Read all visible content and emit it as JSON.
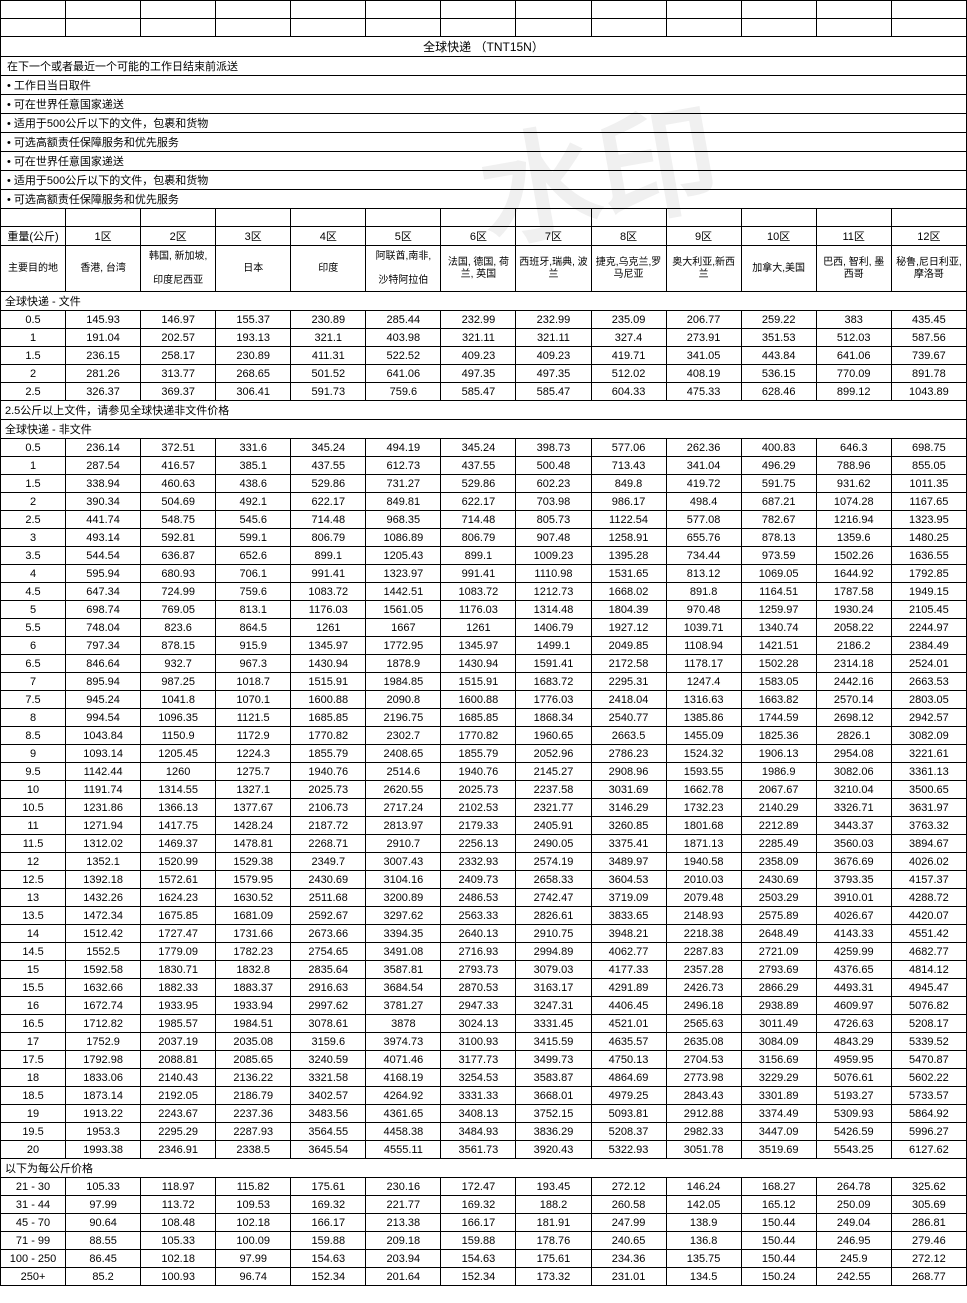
{
  "title": "全球快递 （TNT15N）",
  "delivery_note": "在下一个或者最近一个可能的工作日结束前派送",
  "bullets": [
    "工作日当日取件",
    "可在世界任意国家递送",
    "适用于500公斤以下的文件，包裹和货物",
    "可选高额责任保障服务和优先服务",
    "可在世界任意国家递送",
    "适用于500公斤以下的文件，包裹和货物",
    "可选高额责任保障服务和优先服务"
  ],
  "header_row1": [
    "重量(公斤)",
    "1区",
    "2区",
    "3区",
    "4区",
    "5区",
    "6区",
    "7区",
    "8区",
    "9区",
    "10区",
    "11区",
    "12区"
  ],
  "header_row2_label": "主要目的地",
  "destinations": [
    "香港, 台湾",
    "韩国, 新加坡,\n\n印度尼西亚",
    "日本",
    "印度",
    "阿联酋,南非,\n\n沙特阿拉伯",
    "法国, 德国, 荷兰, 英国",
    "西班牙,瑞典, 波兰",
    "捷克,乌克兰,罗马尼亚",
    "奥大利亚,新西兰",
    "加拿大,美国",
    "巴西, 智利, 墨西哥",
    "秘鲁,尼日利亚,摩洛哥"
  ],
  "section_doc": "全球快递 - 文件",
  "doc_rows": [
    [
      "0.5",
      "145.93",
      "146.97",
      "155.37",
      "230.89",
      "285.44",
      "232.99",
      "232.99",
      "235.09",
      "206.77",
      "259.22",
      "383",
      "435.45"
    ],
    [
      "1",
      "191.04",
      "202.57",
      "193.13",
      "321.1",
      "403.98",
      "321.11",
      "321.11",
      "327.4",
      "273.91",
      "351.53",
      "512.03",
      "587.56"
    ],
    [
      "1.5",
      "236.15",
      "258.17",
      "230.89",
      "411.31",
      "522.52",
      "409.23",
      "409.23",
      "419.71",
      "341.05",
      "443.84",
      "641.06",
      "739.67"
    ],
    [
      "2",
      "281.26",
      "313.77",
      "268.65",
      "501.52",
      "641.06",
      "497.35",
      "497.35",
      "512.02",
      "408.19",
      "536.15",
      "770.09",
      "891.78"
    ],
    [
      "2.5",
      "326.37",
      "369.37",
      "306.41",
      "591.73",
      "759.6",
      "585.47",
      "585.47",
      "604.33",
      "475.33",
      "628.46",
      "899.12",
      "1043.89"
    ]
  ],
  "doc_note": "2.5公斤以上文件，请参见全球快递非文件价格",
  "section_nondoc": "全球快递 - 非文件",
  "nondoc_rows": [
    [
      "0.5",
      "236.14",
      "372.51",
      "331.6",
      "345.24",
      "494.19",
      "345.24",
      "398.73",
      "577.06",
      "262.36",
      "400.83",
      "646.3",
      "698.75"
    ],
    [
      "1",
      "287.54",
      "416.57",
      "385.1",
      "437.55",
      "612.73",
      "437.55",
      "500.48",
      "713.43",
      "341.04",
      "496.29",
      "788.96",
      "855.05"
    ],
    [
      "1.5",
      "338.94",
      "460.63",
      "438.6",
      "529.86",
      "731.27",
      "529.86",
      "602.23",
      "849.8",
      "419.72",
      "591.75",
      "931.62",
      "1011.35"
    ],
    [
      "2",
      "390.34",
      "504.69",
      "492.1",
      "622.17",
      "849.81",
      "622.17",
      "703.98",
      "986.17",
      "498.4",
      "687.21",
      "1074.28",
      "1167.65"
    ],
    [
      "2.5",
      "441.74",
      "548.75",
      "545.6",
      "714.48",
      "968.35",
      "714.48",
      "805.73",
      "1122.54",
      "577.08",
      "782.67",
      "1216.94",
      "1323.95"
    ],
    [
      "3",
      "493.14",
      "592.81",
      "599.1",
      "806.79",
      "1086.89",
      "806.79",
      "907.48",
      "1258.91",
      "655.76",
      "878.13",
      "1359.6",
      "1480.25"
    ],
    [
      "3.5",
      "544.54",
      "636.87",
      "652.6",
      "899.1",
      "1205.43",
      "899.1",
      "1009.23",
      "1395.28",
      "734.44",
      "973.59",
      "1502.26",
      "1636.55"
    ],
    [
      "4",
      "595.94",
      "680.93",
      "706.1",
      "991.41",
      "1323.97",
      "991.41",
      "1110.98",
      "1531.65",
      "813.12",
      "1069.05",
      "1644.92",
      "1792.85"
    ],
    [
      "4.5",
      "647.34",
      "724.99",
      "759.6",
      "1083.72",
      "1442.51",
      "1083.72",
      "1212.73",
      "1668.02",
      "891.8",
      "1164.51",
      "1787.58",
      "1949.15"
    ],
    [
      "5",
      "698.74",
      "769.05",
      "813.1",
      "1176.03",
      "1561.05",
      "1176.03",
      "1314.48",
      "1804.39",
      "970.48",
      "1259.97",
      "1930.24",
      "2105.45"
    ],
    [
      "5.5",
      "748.04",
      "823.6",
      "864.5",
      "1261",
      "1667",
      "1261",
      "1406.79",
      "1927.12",
      "1039.71",
      "1340.74",
      "2058.22",
      "2244.97"
    ],
    [
      "6",
      "797.34",
      "878.15",
      "915.9",
      "1345.97",
      "1772.95",
      "1345.97",
      "1499.1",
      "2049.85",
      "1108.94",
      "1421.51",
      "2186.2",
      "2384.49"
    ],
    [
      "6.5",
      "846.64",
      "932.7",
      "967.3",
      "1430.94",
      "1878.9",
      "1430.94",
      "1591.41",
      "2172.58",
      "1178.17",
      "1502.28",
      "2314.18",
      "2524.01"
    ],
    [
      "7",
      "895.94",
      "987.25",
      "1018.7",
      "1515.91",
      "1984.85",
      "1515.91",
      "1683.72",
      "2295.31",
      "1247.4",
      "1583.05",
      "2442.16",
      "2663.53"
    ],
    [
      "7.5",
      "945.24",
      "1041.8",
      "1070.1",
      "1600.88",
      "2090.8",
      "1600.88",
      "1776.03",
      "2418.04",
      "1316.63",
      "1663.82",
      "2570.14",
      "2803.05"
    ],
    [
      "8",
      "994.54",
      "1096.35",
      "1121.5",
      "1685.85",
      "2196.75",
      "1685.85",
      "1868.34",
      "2540.77",
      "1385.86",
      "1744.59",
      "2698.12",
      "2942.57"
    ],
    [
      "8.5",
      "1043.84",
      "1150.9",
      "1172.9",
      "1770.82",
      "2302.7",
      "1770.82",
      "1960.65",
      "2663.5",
      "1455.09",
      "1825.36",
      "2826.1",
      "3082.09"
    ],
    [
      "9",
      "1093.14",
      "1205.45",
      "1224.3",
      "1855.79",
      "2408.65",
      "1855.79",
      "2052.96",
      "2786.23",
      "1524.32",
      "1906.13",
      "2954.08",
      "3221.61"
    ],
    [
      "9.5",
      "1142.44",
      "1260",
      "1275.7",
      "1940.76",
      "2514.6",
      "1940.76",
      "2145.27",
      "2908.96",
      "1593.55",
      "1986.9",
      "3082.06",
      "3361.13"
    ],
    [
      "10",
      "1191.74",
      "1314.55",
      "1327.1",
      "2025.73",
      "2620.55",
      "2025.73",
      "2237.58",
      "3031.69",
      "1662.78",
      "2067.67",
      "3210.04",
      "3500.65"
    ],
    [
      "10.5",
      "1231.86",
      "1366.13",
      "1377.67",
      "2106.73",
      "2717.24",
      "2102.53",
      "2321.77",
      "3146.29",
      "1732.23",
      "2140.29",
      "3326.71",
      "3631.97"
    ],
    [
      "11",
      "1271.94",
      "1417.75",
      "1428.24",
      "2187.72",
      "2813.97",
      "2179.33",
      "2405.91",
      "3260.85",
      "1801.68",
      "2212.89",
      "3443.37",
      "3763.32"
    ],
    [
      "11.5",
      "1312.02",
      "1469.37",
      "1478.81",
      "2268.71",
      "2910.7",
      "2256.13",
      "2490.05",
      "3375.41",
      "1871.13",
      "2285.49",
      "3560.03",
      "3894.67"
    ],
    [
      "12",
      "1352.1",
      "1520.99",
      "1529.38",
      "2349.7",
      "3007.43",
      "2332.93",
      "2574.19",
      "3489.97",
      "1940.58",
      "2358.09",
      "3676.69",
      "4026.02"
    ],
    [
      "12.5",
      "1392.18",
      "1572.61",
      "1579.95",
      "2430.69",
      "3104.16",
      "2409.73",
      "2658.33",
      "3604.53",
      "2010.03",
      "2430.69",
      "3793.35",
      "4157.37"
    ],
    [
      "13",
      "1432.26",
      "1624.23",
      "1630.52",
      "2511.68",
      "3200.89",
      "2486.53",
      "2742.47",
      "3719.09",
      "2079.48",
      "2503.29",
      "3910.01",
      "4288.72"
    ],
    [
      "13.5",
      "1472.34",
      "1675.85",
      "1681.09",
      "2592.67",
      "3297.62",
      "2563.33",
      "2826.61",
      "3833.65",
      "2148.93",
      "2575.89",
      "4026.67",
      "4420.07"
    ],
    [
      "14",
      "1512.42",
      "1727.47",
      "1731.66",
      "2673.66",
      "3394.35",
      "2640.13",
      "2910.75",
      "3948.21",
      "2218.38",
      "2648.49",
      "4143.33",
      "4551.42"
    ],
    [
      "14.5",
      "1552.5",
      "1779.09",
      "1782.23",
      "2754.65",
      "3491.08",
      "2716.93",
      "2994.89",
      "4062.77",
      "2287.83",
      "2721.09",
      "4259.99",
      "4682.77"
    ],
    [
      "15",
      "1592.58",
      "1830.71",
      "1832.8",
      "2835.64",
      "3587.81",
      "2793.73",
      "3079.03",
      "4177.33",
      "2357.28",
      "2793.69",
      "4376.65",
      "4814.12"
    ],
    [
      "15.5",
      "1632.66",
      "1882.33",
      "1883.37",
      "2916.63",
      "3684.54",
      "2870.53",
      "3163.17",
      "4291.89",
      "2426.73",
      "2866.29",
      "4493.31",
      "4945.47"
    ],
    [
      "16",
      "1672.74",
      "1933.95",
      "1933.94",
      "2997.62",
      "3781.27",
      "2947.33",
      "3247.31",
      "4406.45",
      "2496.18",
      "2938.89",
      "4609.97",
      "5076.82"
    ],
    [
      "16.5",
      "1712.82",
      "1985.57",
      "1984.51",
      "3078.61",
      "3878",
      "3024.13",
      "3331.45",
      "4521.01",
      "2565.63",
      "3011.49",
      "4726.63",
      "5208.17"
    ],
    [
      "17",
      "1752.9",
      "2037.19",
      "2035.08",
      "3159.6",
      "3974.73",
      "3100.93",
      "3415.59",
      "4635.57",
      "2635.08",
      "3084.09",
      "4843.29",
      "5339.52"
    ],
    [
      "17.5",
      "1792.98",
      "2088.81",
      "2085.65",
      "3240.59",
      "4071.46",
      "3177.73",
      "3499.73",
      "4750.13",
      "2704.53",
      "3156.69",
      "4959.95",
      "5470.87"
    ],
    [
      "18",
      "1833.06",
      "2140.43",
      "2136.22",
      "3321.58",
      "4168.19",
      "3254.53",
      "3583.87",
      "4864.69",
      "2773.98",
      "3229.29",
      "5076.61",
      "5602.22"
    ],
    [
      "18.5",
      "1873.14",
      "2192.05",
      "2186.79",
      "3402.57",
      "4264.92",
      "3331.33",
      "3668.01",
      "4979.25",
      "2843.43",
      "3301.89",
      "5193.27",
      "5733.57"
    ],
    [
      "19",
      "1913.22",
      "2243.67",
      "2237.36",
      "3483.56",
      "4361.65",
      "3408.13",
      "3752.15",
      "5093.81",
      "2912.88",
      "3374.49",
      "5309.93",
      "5864.92"
    ],
    [
      "19.5",
      "1953.3",
      "2295.29",
      "2287.93",
      "3564.55",
      "4458.38",
      "3484.93",
      "3836.29",
      "5208.37",
      "2982.33",
      "3447.09",
      "5426.59",
      "5996.27"
    ],
    [
      "20",
      "1993.38",
      "2346.91",
      "2338.5",
      "3645.54",
      "4555.11",
      "3561.73",
      "3920.43",
      "5322.93",
      "3051.78",
      "3519.69",
      "5543.25",
      "6127.62"
    ]
  ],
  "perkg_note": "以下为每公斤价格",
  "perkg_rows": [
    [
      "21 - 30",
      "105.33",
      "118.97",
      "115.82",
      "175.61",
      "230.16",
      "172.47",
      "193.45",
      "272.12",
      "146.24",
      "168.27",
      "264.78",
      "325.62"
    ],
    [
      "31 - 44",
      "97.99",
      "113.72",
      "109.53",
      "169.32",
      "221.77",
      "169.32",
      "188.2",
      "260.58",
      "142.05",
      "165.12",
      "250.09",
      "305.69"
    ],
    [
      "45 - 70",
      "90.64",
      "108.48",
      "102.18",
      "166.17",
      "213.38",
      "166.17",
      "181.91",
      "247.99",
      "138.9",
      "150.44",
      "249.04",
      "286.81"
    ],
    [
      "71 - 99",
      "88.55",
      "105.33",
      "100.09",
      "159.88",
      "209.18",
      "159.88",
      "178.76",
      "240.65",
      "136.8",
      "150.44",
      "246.95",
      "279.46"
    ],
    [
      "100 - 250",
      "86.45",
      "102.18",
      "97.99",
      "154.63",
      "203.94",
      "154.63",
      "175.61",
      "234.36",
      "135.75",
      "150.44",
      "245.9",
      "272.12"
    ],
    [
      "250+",
      "85.2",
      "100.93",
      "96.74",
      "152.34",
      "201.64",
      "152.34",
      "173.32",
      "231.01",
      "134.5",
      "150.24",
      "242.55",
      "268.77"
    ]
  ]
}
